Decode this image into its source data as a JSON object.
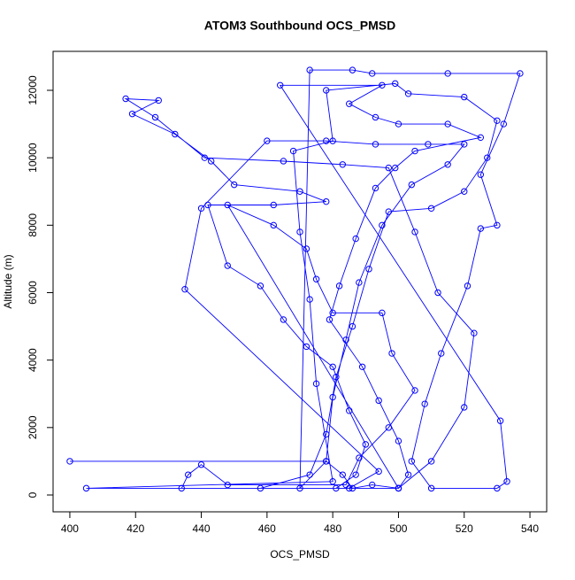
{
  "chart_data": {
    "type": "line",
    "title": "ATOM3 Southbound OCS_PMSD",
    "x_label": "OCS_PMSD",
    "y_label": "Altitude (m)",
    "x": [
      400,
      478,
      483,
      486,
      492,
      500,
      510,
      520,
      523,
      512,
      505,
      497,
      483,
      465,
      441,
      426,
      417,
      427,
      419,
      432,
      443,
      450,
      470,
      478,
      462,
      442,
      448,
      458,
      465,
      472,
      480,
      485,
      490,
      487,
      481,
      500,
      405,
      480,
      475,
      473,
      470,
      468,
      480,
      478,
      499,
      503,
      520,
      530,
      527,
      520,
      510,
      497,
      491,
      486,
      481,
      478,
      473,
      458,
      485,
      494,
      435,
      440,
      460,
      478,
      493,
      509,
      520,
      515,
      504,
      495,
      488,
      484,
      480,
      478,
      470,
      473,
      486,
      492,
      515,
      537,
      532,
      525,
      530,
      525,
      521,
      513,
      508,
      504,
      510,
      530,
      533,
      531,
      464,
      495,
      485,
      493,
      500,
      515,
      525,
      505,
      499,
      493,
      487,
      482,
      479,
      489,
      494,
      500,
      503,
      500,
      448,
      462,
      472,
      475,
      480,
      495,
      498,
      505,
      497,
      488,
      484,
      448,
      440,
      436,
      434
    ],
    "series": [
      {
        "color": "#0000ff",
        "values": [
          1000,
          1000,
          600,
          200,
          300,
          200,
          1000,
          2600,
          4800,
          6000,
          7800,
          9700,
          9800,
          9900,
          10000,
          11200,
          11750,
          11700,
          11300,
          10700,
          9900,
          9200,
          9000,
          8700,
          8600,
          8600,
          6800,
          6200,
          5200,
          4400,
          3800,
          2500,
          1500,
          600,
          200,
          200,
          200,
          400,
          3300,
          5800,
          7800,
          10200,
          10500,
          12000,
          12200,
          11900,
          11800,
          11100,
          10000,
          9000,
          8500,
          8400,
          6700,
          5000,
          3500,
          1800,
          600,
          200,
          200,
          700,
          6100,
          8500,
          10500,
          10500,
          10400,
          10400,
          10400,
          9800,
          9200,
          8000,
          6300,
          4600,
          2900,
          1000,
          200,
          12600,
          12600,
          12500,
          12500,
          12500,
          11000,
          9500,
          8000,
          7900,
          6200,
          4200,
          2700,
          1000,
          200,
          200,
          400,
          2200,
          12150,
          12150,
          11600,
          11200,
          11000,
          11000,
          10600,
          10200,
          9700,
          9100,
          7600,
          6200,
          5200,
          3800,
          2800,
          1600,
          600,
          200,
          8600,
          8000,
          7300,
          6400,
          5400,
          5400,
          4200,
          3100,
          2000,
          1100,
          300,
          300,
          900,
          600,
          200
        ]
      }
    ],
    "xlim": [
      394.9,
      545.1
    ],
    "ylim": [
      -499,
      13155
    ],
    "xticks": [
      400,
      420,
      440,
      460,
      480,
      500,
      520,
      540
    ],
    "yticks": [
      0,
      2000,
      4000,
      6000,
      8000,
      10000,
      12000
    ]
  }
}
